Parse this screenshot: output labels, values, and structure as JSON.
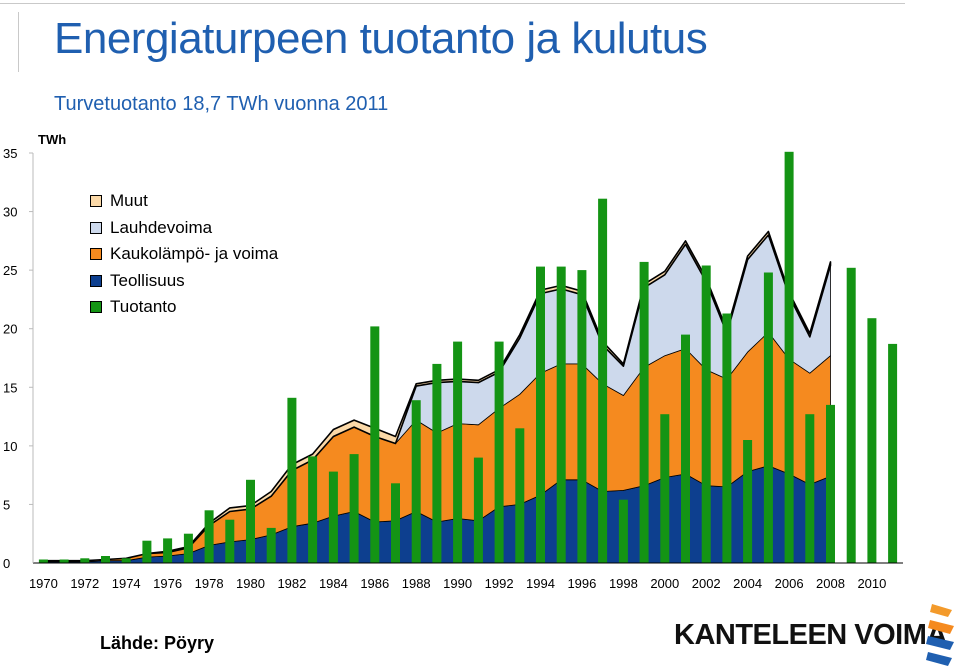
{
  "header": {
    "title": "Energiaturpeen tuotanto ja kulutus",
    "subtitle": "Turvetuotanto 18,7 TWh vuonna 2011"
  },
  "chart_data": {
    "type": "area",
    "unit_label": "TWh",
    "y_ticks": [
      "0",
      "5",
      "10",
      "15",
      "20",
      "25",
      "30",
      "35"
    ],
    "ylim": [
      0,
      35
    ],
    "x_tick_labels": [
      "1970",
      "1972",
      "1974",
      "1976",
      "1978",
      "1980",
      "1982",
      "1984",
      "1986",
      "1988",
      "1990",
      "1992",
      "1994",
      "1996",
      "1998",
      "2000",
      "2002",
      "2004",
      "2006",
      "2008",
      "2010"
    ],
    "x_years": [
      1970,
      1971,
      1972,
      1973,
      1974,
      1975,
      1976,
      1977,
      1978,
      1979,
      1980,
      1981,
      1982,
      1983,
      1984,
      1985,
      1986,
      1987,
      1988,
      1989,
      1990,
      1991,
      1992,
      1993,
      1994,
      1995,
      1996,
      1997,
      1998,
      1999,
      2000,
      2001,
      2002,
      2003,
      2004,
      2005,
      2006,
      2007,
      2008,
      2009,
      2010,
      2011
    ],
    "stacked_series": [
      {
        "name": "Teollisuus",
        "color": "#0d3f8f",
        "values": [
          0.1,
          0.1,
          0.1,
          0.2,
          0.2,
          0.5,
          0.6,
          0.8,
          1.5,
          1.8,
          2.0,
          2.4,
          3.1,
          3.4,
          4.0,
          4.4,
          3.5,
          3.6,
          4.4,
          3.5,
          3.8,
          3.6,
          4.8,
          5.0,
          5.8,
          7.1,
          7.1,
          6.1,
          6.2,
          6.6,
          7.3,
          7.6,
          6.6,
          6.5,
          7.8,
          8.3,
          7.6,
          6.7,
          7.4,
          null,
          null,
          null
        ]
      },
      {
        "name": "Kaukolämpö- ja voima",
        "color": "#f58a1f",
        "values": [
          0.1,
          0.1,
          0.1,
          0.1,
          0.2,
          0.3,
          0.3,
          0.5,
          1.7,
          2.6,
          2.6,
          3.3,
          4.8,
          5.4,
          6.8,
          7.2,
          7.3,
          6.6,
          7.8,
          7.6,
          8.1,
          8.2,
          8.4,
          9.4,
          10.4,
          9.9,
          9.9,
          9.2,
          8.1,
          10.1,
          10.4,
          10.7,
          9.9,
          9.2,
          10.2,
          11.4,
          9.8,
          9.5,
          10.3,
          null,
          null,
          null
        ]
      },
      {
        "name": "Lauhdevoima",
        "color": "#cdd9ec",
        "values": [
          0.0,
          0.0,
          0.0,
          0.0,
          0.0,
          0.0,
          0.0,
          0.0,
          0.0,
          0.0,
          0.0,
          0.0,
          0.0,
          0.0,
          0.0,
          0.0,
          0.0,
          0.0,
          2.9,
          4.3,
          3.6,
          3.6,
          3.1,
          4.8,
          6.8,
          6.4,
          5.9,
          3.3,
          2.5,
          6.8,
          6.9,
          8.9,
          7.5,
          3.9,
          7.9,
          8.3,
          5.4,
          3.1,
          7.7,
          null,
          null,
          null
        ]
      },
      {
        "name": "Muut",
        "color": "#fbd9a8",
        "values": [
          0.0,
          0.0,
          0.0,
          0.0,
          0.0,
          0.0,
          0.1,
          0.1,
          0.2,
          0.3,
          0.3,
          0.4,
          0.5,
          0.5,
          0.6,
          0.6,
          0.7,
          0.6,
          0.2,
          0.2,
          0.2,
          0.2,
          0.2,
          0.3,
          0.3,
          0.3,
          0.3,
          0.3,
          0.2,
          0.3,
          0.3,
          0.3,
          0.3,
          0.3,
          0.3,
          0.3,
          0.3,
          0.3,
          0.3,
          null,
          null,
          null
        ]
      }
    ],
    "bar_series": {
      "name": "Tuotanto",
      "color": "#149414",
      "values": [
        0.3,
        0.3,
        0.4,
        0.6,
        0.4,
        1.9,
        2.1,
        2.5,
        4.5,
        3.7,
        7.1,
        3.0,
        14.1,
        9.1,
        7.8,
        9.3,
        20.2,
        6.8,
        13.9,
        17.0,
        18.9,
        9.0,
        18.9,
        11.5,
        25.3,
        25.3,
        25.0,
        31.1,
        5.4,
        25.7,
        12.7,
        19.5,
        25.4,
        21.3,
        10.5,
        24.8,
        35.1,
        12.7,
        13.5,
        25.2,
        20.9,
        18.7
      ]
    },
    "legend_order": [
      "Muut",
      "Lauhdevoima",
      "Kaukolämpö- ja voima",
      "Teollisuus",
      "Tuotanto"
    ],
    "legend_position": "top-left",
    "grid": false
  },
  "footer": {
    "source": "Lähde: Pöyry",
    "brand": "KANTELEEN VOIMA"
  }
}
